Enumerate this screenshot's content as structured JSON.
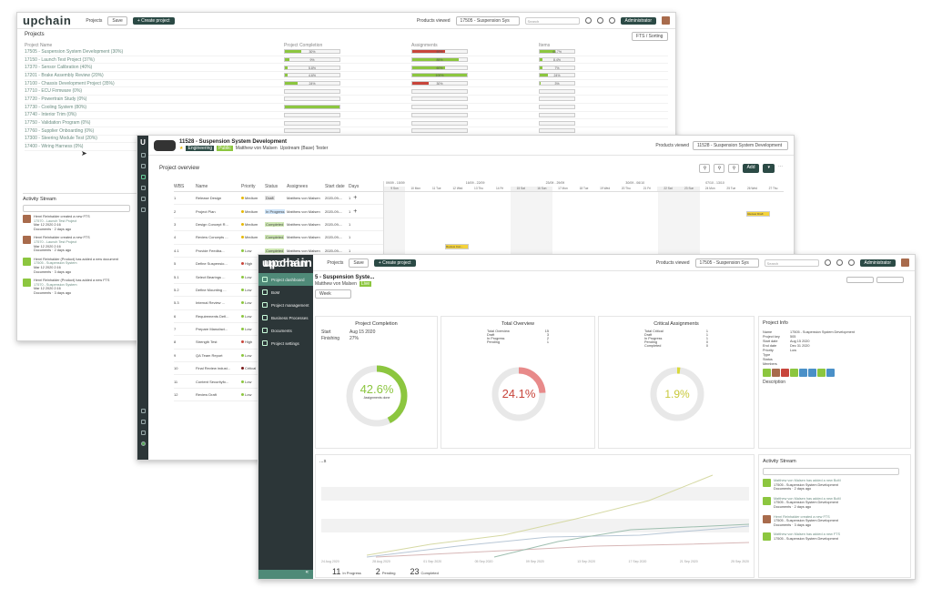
{
  "back": {
    "logo": "upchain",
    "nav_projects": "Projects",
    "btn_save": "Save",
    "btn_create": "+ Create project",
    "products_viewed": "Products viewed",
    "ctx": "17505 - Suspension Sys",
    "search_ph": "Search",
    "user_btn": "Administrator",
    "section_title": "Projects",
    "filter": "FTS / Sorting",
    "col_name": "Project Name",
    "col_complete": "Project Completion",
    "col_assign": "Assignments",
    "col_items": "Items",
    "projects": [
      {
        "name": "17505 - Suspension System Development (30%)",
        "c": "30%",
        "cv": 30,
        "a": "60%",
        "av": 60,
        "ac": "#c8453b",
        "i": "44.7%",
        "iv": 44.7
      },
      {
        "name": "17150 - Launch Test Project (37%)",
        "c": "9%",
        "cv": 9,
        "a": "85%",
        "av": 85,
        "ac": "#8cc63f",
        "i": "8.4%",
        "iv": 8.4
      },
      {
        "name": "17370 - Sensor Calibration (40%)",
        "c": "5.8%",
        "cv": 5.8,
        "a": "60%",
        "av": 60,
        "ac": "#8cc63f",
        "i": "7%",
        "iv": 7
      },
      {
        "name": "17201 - Brake Assembly Review (20%)",
        "c": "4.6%",
        "cv": 4.6,
        "a": "100%",
        "av": 100,
        "ac": "#8cc63f",
        "i": "24%",
        "iv": 24
      },
      {
        "name": "17100 - Chassis Development Project (35%)",
        "c": "24%",
        "cv": 24,
        "a": "30%",
        "av": 30,
        "ac": "#c8453b",
        "i": "3%",
        "iv": 3
      },
      {
        "name": "17710 - ECU Firmware (0%)",
        "c": "",
        "cv": 0,
        "a": "",
        "av": 0,
        "ac": "#8cc63f",
        "i": "",
        "iv": 0
      },
      {
        "name": "17720 - Powertrain Study (0%)",
        "c": "",
        "cv": 0,
        "a": "",
        "av": 0,
        "ac": "#8cc63f",
        "i": "",
        "iv": 0
      },
      {
        "name": "17730 - Cooling System (80%)",
        "c": "",
        "cv": 100,
        "a": "",
        "av": 0,
        "ac": "#8cc63f",
        "i": "",
        "iv": 0
      },
      {
        "name": "17740 - Interior Trim (0%)",
        "c": "",
        "cv": 0,
        "a": "",
        "av": 0,
        "ac": "#8cc63f",
        "i": "",
        "iv": 0
      },
      {
        "name": "17750 - Validation Program (0%)",
        "c": "",
        "cv": 0,
        "a": "",
        "av": 0,
        "ac": "#8cc63f",
        "i": "",
        "iv": 0
      },
      {
        "name": "17760 - Supplier Onboarding (0%)",
        "c": "",
        "cv": 0,
        "a": "",
        "av": 0,
        "ac": "#8cc63f",
        "i": "",
        "iv": 0
      },
      {
        "name": "17300 - Steering Module Test (20%)",
        "c": "0%",
        "cv": 0,
        "a": "",
        "av": 12,
        "ac": "#c8453b",
        "i": "0%",
        "iv": 0
      },
      {
        "name": "17400 - Wiring Harness (0%)",
        "c": "",
        "cv": 0,
        "a": "",
        "av": 0,
        "ac": "#8cc63f",
        "i": "",
        "iv": 0
      }
    ],
    "activity_title": "Activity Stream",
    "activity": [
      {
        "text": "Henri Reinhalder created a new FTS",
        "sub": "17570 - Launch Test Project",
        "time": "Mar 12 2020 2:16",
        "meta": "Documents · 2 days ago"
      },
      {
        "text": "Henri Reinhalder created a new FTS",
        "sub": "17570 - Launch Test Project",
        "time": "Mar 12 2020 2:16",
        "meta": "Documents · 2 days ago"
      },
      {
        "text": "Henri Reinhalder (Product) has added a new document",
        "sub": "17505 - Suspension System",
        "time": "Mar 12 2020 2:16",
        "meta": "Documents · 3 days ago"
      },
      {
        "text": "Henri Reinhalder (Product) has added a new FTS",
        "sub": "17570 - Suspension System",
        "time": "Mar 12 2020 2:16",
        "meta": "Documents · 3 days ago"
      }
    ]
  },
  "middle": {
    "project_id": "11528",
    "project_name": "11528 - Suspension System Development",
    "tags": [
      "Engineering",
      "Public"
    ],
    "owner": "Matthew von Malsen",
    "owner2": "Upstream (Base) Tester",
    "products_viewed": "Products viewed",
    "product": "11528 - Suspension System Development",
    "section": "Project overview",
    "add_btn": "Add",
    "cols": [
      "WBS",
      "Name",
      "Priority",
      "Status",
      "Assignees",
      "Start date",
      "Days"
    ],
    "months": [
      "09/09 - 15/09",
      "16/09 - 22/09",
      "23/09 - 29/09",
      "30/09 - 06/10",
      "07/10 - 13/10"
    ],
    "days": [
      "9 Sun",
      "10 Mon",
      "11 Tue",
      "12 Wed",
      "13 Thu",
      "14 Fri",
      "15 Sat",
      "16 Sun",
      "17 Mon",
      "18 Tue",
      "19 Wed",
      "20 Thu",
      "21 Fri",
      "22 Sat",
      "23 Sun",
      "24 Mon",
      "25 Tue",
      "26 Wed",
      "27 Thu"
    ],
    "rows": [
      {
        "wbs": "1",
        "name": "Release Design",
        "prio": "Medium",
        "status": "Draft",
        "sc": "#e6e6e6",
        "assignee": "Matthew von Malsen",
        "start": "2020-09-...",
        "days": "1"
      },
      {
        "wbs": "2",
        "name": "Project Plan",
        "prio": "Medium",
        "status": "In Progress",
        "sc": "#cde3f7",
        "assignee": "Matthew von Malsen",
        "start": "2020-09-...",
        "days": "1"
      },
      {
        "wbs": "3",
        "name": "Design Concept R...",
        "prio": "Medium",
        "status": "Completed",
        "sc": "#cfe8b4",
        "assignee": "Matthew von Malsen",
        "start": "2020-09-...",
        "days": "1"
      },
      {
        "wbs": "4",
        "name": "Review Concepts ...",
        "prio": "Medium",
        "status": "Completed",
        "sc": "#cfe8b4",
        "assignee": "Matthew von Malsen",
        "start": "2020-09-...",
        "days": "1"
      },
      {
        "wbs": "4.1",
        "name": "Provide Feedba...",
        "prio": "Low",
        "status": "Completed",
        "sc": "#cfe8b4",
        "assignee": "Matthew von Malsen",
        "start": "2020-09-...",
        "days": "1"
      },
      {
        "wbs": "5",
        "name": "Define Suspensio...",
        "prio": "High",
        "status": "",
        "sc": "#fff",
        "assignee": "",
        "start": "",
        "days": ""
      },
      {
        "wbs": "5.1",
        "name": "Select Bearings ...",
        "prio": "Low",
        "status": "",
        "sc": "#fff",
        "assignee": "",
        "start": "",
        "days": ""
      },
      {
        "wbs": "5.2",
        "name": "Define Mounting ...",
        "prio": "Low",
        "status": "",
        "sc": "#fff",
        "assignee": "",
        "start": "",
        "days": ""
      },
      {
        "wbs": "5.3",
        "name": "Internal Review ...",
        "prio": "Low",
        "status": "",
        "sc": "#fff",
        "assignee": "",
        "start": "",
        "days": ""
      },
      {
        "wbs": "6",
        "name": "Requirements Defi...",
        "prio": "Low",
        "status": "",
        "sc": "#fff",
        "assignee": "",
        "start": "",
        "days": ""
      },
      {
        "wbs": "7",
        "name": "Prepare Manufact...",
        "prio": "Low",
        "status": "",
        "sc": "#fff",
        "assignee": "",
        "start": "",
        "days": ""
      },
      {
        "wbs": "8",
        "name": "Strength Test",
        "prio": "High",
        "status": "",
        "sc": "#fff",
        "assignee": "",
        "start": "",
        "days": ""
      },
      {
        "wbs": "9",
        "name": "QA Team Report",
        "prio": "Low",
        "status": "",
        "sc": "#fff",
        "assignee": "",
        "start": "",
        "days": ""
      },
      {
        "wbs": "10",
        "name": "Final Review indust...",
        "prio": "Critical",
        "status": "",
        "sc": "#fff",
        "assignee": "",
        "start": "",
        "days": ""
      },
      {
        "wbs": "11",
        "name": "Content Securityfo...",
        "prio": "Low",
        "status": "",
        "sc": "#fff",
        "assignee": "",
        "start": "",
        "days": ""
      },
      {
        "wbs": "12",
        "name": "Review Draft",
        "prio": "Low",
        "status": "",
        "sc": "#fff",
        "assignee": "",
        "start": "",
        "days": ""
      }
    ],
    "gantt_labels": [
      "Review Con...",
      "Provide Fee...",
      "Define Susp...",
      "Review Draft"
    ]
  },
  "front": {
    "logo": "upchain",
    "nav_projects": "Projects",
    "btn_save": "Save",
    "btn_create": "+ Create project",
    "products_viewed": "Products viewed",
    "ctx": "17505 - Suspension Sys",
    "search_ph": "Search",
    "user_btn": "Administrator",
    "menu": [
      {
        "label": "Project dashboard",
        "icon": "dashboard-icon",
        "active": true
      },
      {
        "label": "BoM",
        "icon": "bom-icon",
        "active": false
      },
      {
        "label": "Project management",
        "icon": "project-management-icon",
        "active": false
      },
      {
        "label": "Business Processes",
        "icon": "process-icon",
        "active": false
      },
      {
        "label": "Documents",
        "icon": "documents-icon",
        "active": false
      },
      {
        "label": "Project settings",
        "icon": "settings-icon",
        "active": false
      }
    ],
    "title": "5 - Suspension Syste...",
    "subtitle": "Matthew von Malsen",
    "status_chip": "Live",
    "filter": "Week",
    "completion": {
      "title": "Project Completion",
      "start_label": "Start",
      "start": "Aug 15 2020",
      "end_label": "Finishing",
      "end": "27%",
      "value": "42.6%",
      "pct": 42.6,
      "sub": "42.6%",
      "sub2": "Assignments done"
    },
    "overview": {
      "title": "Total Overview",
      "rows": [
        [
          "Total Overview",
          "15"
        ],
        [
          "Draft",
          "3"
        ],
        [
          "In Progress",
          "2"
        ],
        [
          "Pending",
          "1"
        ]
      ],
      "value": "24.1%",
      "pct": 24.1
    },
    "critical": {
      "title": "Critical Assignments",
      "rows": [
        [
          "Total Critical",
          "1"
        ],
        [
          "Draft",
          "1"
        ],
        [
          "In Progress",
          "1"
        ],
        [
          "Pending",
          "0"
        ],
        [
          "Completed",
          "0"
        ]
      ],
      "value": "1.9%",
      "pct": 1.9
    },
    "info": {
      "title": "Project Info",
      "rows": [
        [
          "Name",
          "17505 - Suspension System Development"
        ],
        [
          "Project key",
          "505"
        ],
        [
          "Start date",
          "Aug 15 2020"
        ],
        [
          "End date",
          "Dec 31 2020"
        ],
        [
          "Priority",
          "Low"
        ],
        [
          "Type",
          ""
        ],
        [
          "Status",
          ""
        ],
        [
          "Members",
          ""
        ]
      ],
      "desc": "Description"
    },
    "trend_title": "...s",
    "trend_dates": [
      "24 Aug 2020",
      "28 Aug 2020",
      "01 Sep 2020",
      "05 Sep 2020",
      "09 Sep 2020",
      "13 Sep 2020",
      "17 Sep 2020",
      "21 Sep 2020",
      "25 Sep 2020"
    ],
    "stats": [
      {
        "n": "11",
        "l": "In Progress"
      },
      {
        "n": "2",
        "l": "Pending"
      },
      {
        "n": "23",
        "l": "Completed"
      }
    ],
    "stream_title": "Activity Stream",
    "stream": [
      {
        "text": "Matthew von Malsen has added a new BoM",
        "sub": "17505 - Suspension System Development",
        "meta": "Documents · 2 days ago"
      },
      {
        "text": "Matthew von Malsen has added a new BoM",
        "sub": "17505 - Suspension System Development",
        "meta": "Documents · 2 days ago"
      },
      {
        "text": "Henri Reinhalder created a new FTS",
        "sub": "17505 - Suspension System Development",
        "meta": "Documents · 3 days ago"
      },
      {
        "text": "Matthew von Malsen has added a new FTS",
        "sub": "17505 - Suspension System Development",
        "meta": ""
      }
    ],
    "colors": {
      "accent": "#4f8a78",
      "green": "#8cc63f",
      "red": "#c8453b",
      "yellow": "#d9d93a"
    }
  }
}
